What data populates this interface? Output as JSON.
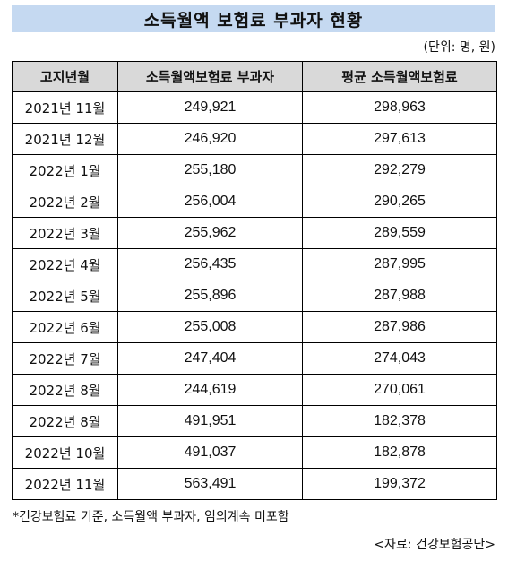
{
  "title": "소득월액 보험료 부과자 현황",
  "unit_label": "(단위: 명, 원)",
  "table": {
    "headers": [
      "고지년월",
      "소득월액보험료 부과자",
      "평균 소득월액보험료"
    ],
    "rows": [
      [
        "2021년 11월",
        "249,921",
        "298,963"
      ],
      [
        "2021년 12월",
        "246,920",
        "297,613"
      ],
      [
        "2022년 1월",
        "255,180",
        "292,279"
      ],
      [
        "2022년 2월",
        "256,004",
        "290,265"
      ],
      [
        "2022년 3월",
        "255,962",
        "289,559"
      ],
      [
        "2022년 4월",
        "256,435",
        "287,995"
      ],
      [
        "2022년 5월",
        "255,896",
        "287,988"
      ],
      [
        "2022년 6월",
        "255,008",
        "287,986"
      ],
      [
        "2022년 7월",
        "247,404",
        "274,043"
      ],
      [
        "2022년 8월",
        "244,619",
        "270,061"
      ],
      [
        "2022년 8월",
        "491,951",
        "182,378"
      ],
      [
        "2022년 10월",
        "491,037",
        "182,878"
      ],
      [
        "2022년 11월",
        "563,491",
        "199,372"
      ]
    ]
  },
  "footnote": "*건강보험료 기준, 소득월액 부과자, 임의계속 미포함",
  "source": "<자료: 건강보험공단>"
}
